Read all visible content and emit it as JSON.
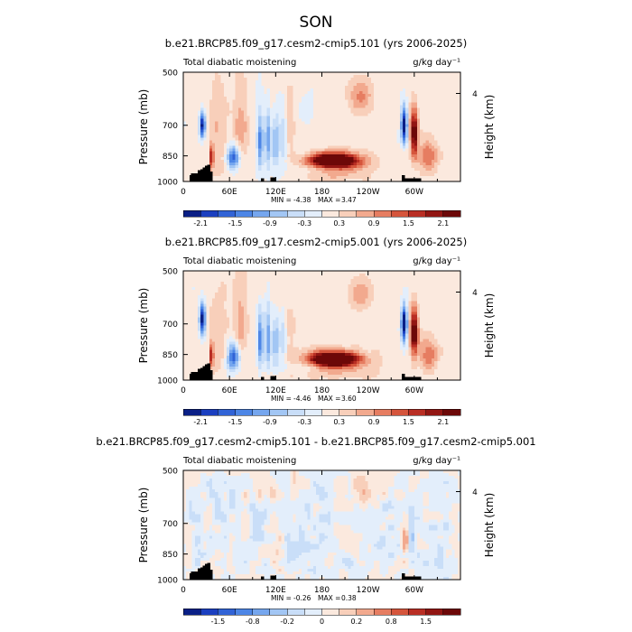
{
  "page_title": "SON",
  "colors": {
    "scale": [
      "#0a1f86",
      "#1b3fc0",
      "#3163d6",
      "#4d86e6",
      "#75a6ee",
      "#a2c6f4",
      "#c9def8",
      "#e3eefb",
      "#fbe9de",
      "#f8cfba",
      "#f2a98e",
      "#e67d61",
      "#d5553c",
      "#b92e24",
      "#921613",
      "#6c0808"
    ],
    "topography": "#000000",
    "background": "#ffffff"
  },
  "chart_data": [
    {
      "type": "heatmap",
      "title": "b.e21.BRCP85.f09_g17.cesm2-cmip5.101 (yrs 2006-2025)",
      "left_label": "Total diabatic moistening",
      "right_label": "g/kg day⁻¹",
      "ylabel": "Pressure (mb)",
      "y2label": "Height (km)",
      "xticks": [
        "0",
        "60E",
        "120E",
        "180",
        "120W",
        "60W"
      ],
      "yticks": [
        "500",
        "700",
        "850",
        "1000"
      ],
      "y2ticks": [
        "4"
      ],
      "xlim": [
        0,
        360
      ],
      "ylim": [
        1000,
        500
      ],
      "stats": {
        "min_label": "MIN =",
        "min": "-4.38",
        "max_label": "MAX =",
        "max": "3.47"
      },
      "colorbar": {
        "tick_labels": [
          "-2.1",
          "-1.5",
          "-0.9",
          "-0.3",
          "0.3",
          "0.9",
          "1.5",
          "2.1"
        ],
        "levels": [
          -2.1,
          -1.8,
          -1.5,
          -1.2,
          -0.9,
          -0.6,
          -0.3,
          0,
          0.3,
          0.6,
          0.9,
          1.2,
          1.5,
          1.8,
          2.1
        ]
      },
      "features": [
        {
          "lon": 25,
          "p": 700,
          "lon_w": 4,
          "p_w": 60,
          "value": -2.4
        },
        {
          "lon": 37,
          "p": 860,
          "lon_w": 2,
          "p_w": 70,
          "value": 2.2
        },
        {
          "lon": 45,
          "p": 720,
          "lon_w": 12,
          "p_w": 200,
          "value": 0.5
        },
        {
          "lon": 65,
          "p": 860,
          "lon_w": 8,
          "p_w": 70,
          "value": -1.8
        },
        {
          "lon": 75,
          "p": 700,
          "lon_w": 10,
          "p_w": 150,
          "value": 0.7
        },
        {
          "lon": 100,
          "p": 780,
          "lon_w": 4,
          "p_w": 140,
          "value": -1.5
        },
        {
          "lon": 110,
          "p": 760,
          "lon_w": 4,
          "p_w": 150,
          "value": -1.2
        },
        {
          "lon": 120,
          "p": 780,
          "lon_w": 4,
          "p_w": 130,
          "value": -1.1
        },
        {
          "lon": 130,
          "p": 760,
          "lon_w": 5,
          "p_w": 140,
          "value": -0.7
        },
        {
          "lon": 138,
          "p": 720,
          "lon_w": 8,
          "p_w": 150,
          "value": 0.4
        },
        {
          "lon": 160,
          "p": 640,
          "lon_w": 10,
          "p_w": 60,
          "value": -0.4
        },
        {
          "lon": 185,
          "p": 920,
          "lon_w": 40,
          "p_w": 30,
          "value": -0.5
        },
        {
          "lon": 195,
          "p": 875,
          "lon_w": 30,
          "p_w": 38,
          "value": 3.2
        },
        {
          "lon": 200,
          "p": 910,
          "lon_w": 40,
          "p_w": 70,
          "value": 1.0
        },
        {
          "lon": 230,
          "p": 580,
          "lon_w": 15,
          "p_w": 60,
          "value": 0.8
        },
        {
          "lon": 287,
          "p": 700,
          "lon_w": 4,
          "p_w": 80,
          "value": -2.6
        },
        {
          "lon": 300,
          "p": 740,
          "lon_w": 5,
          "p_w": 110,
          "value": 2.4
        },
        {
          "lon": 318,
          "p": 850,
          "lon_w": 12,
          "p_w": 90,
          "value": 1.0
        }
      ]
    },
    {
      "type": "heatmap",
      "title": "b.e21.BRCP85.f09_g17.cesm2-cmip5.001 (yrs 2006-2025)",
      "left_label": "Total diabatic moistening",
      "right_label": "g/kg day⁻¹",
      "ylabel": "Pressure (mb)",
      "y2label": "Height (km)",
      "xticks": [
        "0",
        "60E",
        "120E",
        "180",
        "120W",
        "60W"
      ],
      "yticks": [
        "500",
        "700",
        "850",
        "1000"
      ],
      "y2ticks": [
        "4"
      ],
      "xlim": [
        0,
        360
      ],
      "ylim": [
        1000,
        500
      ],
      "stats": {
        "min_label": "MIN =",
        "min": "-4.46",
        "max_label": "MAX =",
        "max": "3.60"
      },
      "colorbar": {
        "tick_labels": [
          "-2.1",
          "-1.5",
          "-0.9",
          "-0.3",
          "0.3",
          "0.9",
          "1.5",
          "2.1"
        ],
        "levels": [
          -2.1,
          -1.8,
          -1.5,
          -1.2,
          -0.9,
          -0.6,
          -0.3,
          0,
          0.3,
          0.6,
          0.9,
          1.2,
          1.5,
          1.8,
          2.1
        ]
      },
      "features": [
        {
          "lon": 25,
          "p": 680,
          "lon_w": 4,
          "p_w": 70,
          "value": -2.5
        },
        {
          "lon": 37,
          "p": 860,
          "lon_w": 2,
          "p_w": 70,
          "value": 2.3
        },
        {
          "lon": 45,
          "p": 720,
          "lon_w": 12,
          "p_w": 200,
          "value": 0.5
        },
        {
          "lon": 65,
          "p": 860,
          "lon_w": 8,
          "p_w": 70,
          "value": -1.9
        },
        {
          "lon": 75,
          "p": 700,
          "lon_w": 10,
          "p_w": 150,
          "value": 0.7
        },
        {
          "lon": 100,
          "p": 780,
          "lon_w": 4,
          "p_w": 140,
          "value": -1.6
        },
        {
          "lon": 110,
          "p": 760,
          "lon_w": 4,
          "p_w": 150,
          "value": -1.3
        },
        {
          "lon": 120,
          "p": 780,
          "lon_w": 4,
          "p_w": 130,
          "value": -1.1
        },
        {
          "lon": 130,
          "p": 760,
          "lon_w": 5,
          "p_w": 140,
          "value": -0.7
        },
        {
          "lon": 138,
          "p": 720,
          "lon_w": 8,
          "p_w": 150,
          "value": 0.4
        },
        {
          "lon": 185,
          "p": 920,
          "lon_w": 40,
          "p_w": 30,
          "value": -0.5
        },
        {
          "lon": 195,
          "p": 875,
          "lon_w": 30,
          "p_w": 40,
          "value": 3.3
        },
        {
          "lon": 200,
          "p": 910,
          "lon_w": 40,
          "p_w": 70,
          "value": 1.0
        },
        {
          "lon": 230,
          "p": 580,
          "lon_w": 15,
          "p_w": 60,
          "value": 0.8
        },
        {
          "lon": 287,
          "p": 700,
          "lon_w": 4,
          "p_w": 80,
          "value": -2.7
        },
        {
          "lon": 300,
          "p": 740,
          "lon_w": 5,
          "p_w": 110,
          "value": 2.5
        },
        {
          "lon": 318,
          "p": 850,
          "lon_w": 12,
          "p_w": 90,
          "value": 1.0
        }
      ]
    },
    {
      "type": "heatmap",
      "title": "b.e21.BRCP85.f09_g17.cesm2-cmip5.101 - b.e21.BRCP85.f09_g17.cesm2-cmip5.001",
      "left_label": "Total diabatic moistening",
      "right_label": "g/kg day⁻¹",
      "ylabel": "Pressure (mb)",
      "y2label": "Height (km)",
      "xticks": [
        "0",
        "60E",
        "120E",
        "180",
        "120W",
        "60W"
      ],
      "yticks": [
        "500",
        "700",
        "850",
        "1000"
      ],
      "y2ticks": [
        "4"
      ],
      "xlim": [
        0,
        360
      ],
      "ylim": [
        1000,
        500
      ],
      "stats": {
        "min_label": "MIN =",
        "min": "-0.26",
        "max_label": "MAX =",
        "max": "0.38"
      },
      "colorbar": {
        "tick_labels": [
          "-1.5",
          "-0.8",
          "-0.2",
          "0",
          "0.2",
          "0.8",
          "1.5"
        ],
        "levels": [
          -1.8,
          -1.5,
          -1.2,
          -0.8,
          -0.5,
          -0.2,
          -0.1,
          0,
          0.1,
          0.2,
          0.5,
          0.8,
          1.2,
          1.5,
          1.8
        ]
      },
      "features": [
        {
          "lon": 20,
          "p": 780,
          "lon_w": 10,
          "p_w": 150,
          "value": -0.12
        },
        {
          "lon": 45,
          "p": 620,
          "lon_w": 15,
          "p_w": 80,
          "value": -0.08
        },
        {
          "lon": 70,
          "p": 830,
          "lon_w": 8,
          "p_w": 90,
          "value": -0.11
        },
        {
          "lon": 95,
          "p": 760,
          "lon_w": 10,
          "p_w": 150,
          "value": -0.12
        },
        {
          "lon": 105,
          "p": 560,
          "lon_w": 15,
          "p_w": 50,
          "value": 0.11
        },
        {
          "lon": 120,
          "p": 840,
          "lon_w": 6,
          "p_w": 80,
          "value": 0.12
        },
        {
          "lon": 145,
          "p": 800,
          "lon_w": 12,
          "p_w": 120,
          "value": -0.1
        },
        {
          "lon": 175,
          "p": 720,
          "lon_w": 25,
          "p_w": 200,
          "value": -0.07
        },
        {
          "lon": 220,
          "p": 900,
          "lon_w": 25,
          "p_w": 60,
          "value": -0.08
        },
        {
          "lon": 240,
          "p": 560,
          "lon_w": 25,
          "p_w": 60,
          "value": 0.12
        },
        {
          "lon": 265,
          "p": 720,
          "lon_w": 20,
          "p_w": 150,
          "value": -0.08
        },
        {
          "lon": 288,
          "p": 780,
          "lon_w": 4,
          "p_w": 70,
          "value": 0.3
        },
        {
          "lon": 296,
          "p": 760,
          "lon_w": 4,
          "p_w": 90,
          "value": -0.2
        },
        {
          "lon": 330,
          "p": 800,
          "lon_w": 15,
          "p_w": 150,
          "value": -0.09
        }
      ]
    }
  ],
  "topography_columns": [
    {
      "lon": 8,
      "p": 960
    },
    {
      "lon": 10,
      "p": 950
    },
    {
      "lon": 13,
      "p": 950
    },
    {
      "lon": 16,
      "p": 950
    },
    {
      "lon": 19,
      "p": 930
    },
    {
      "lon": 22,
      "p": 925
    },
    {
      "lon": 25,
      "p": 915
    },
    {
      "lon": 28,
      "p": 905
    },
    {
      "lon": 31,
      "p": 900
    },
    {
      "lon": 34,
      "p": 940
    },
    {
      "lon": 101,
      "p": 980
    },
    {
      "lon": 113,
      "p": 975
    },
    {
      "lon": 117,
      "p": 975
    },
    {
      "lon": 284,
      "p": 960
    },
    {
      "lon": 287,
      "p": 980
    },
    {
      "lon": 290,
      "p": 980
    },
    {
      "lon": 293,
      "p": 980
    },
    {
      "lon": 296,
      "p": 980
    },
    {
      "lon": 299,
      "p": 980
    },
    {
      "lon": 302,
      "p": 980
    },
    {
      "lon": 305,
      "p": 980
    }
  ]
}
